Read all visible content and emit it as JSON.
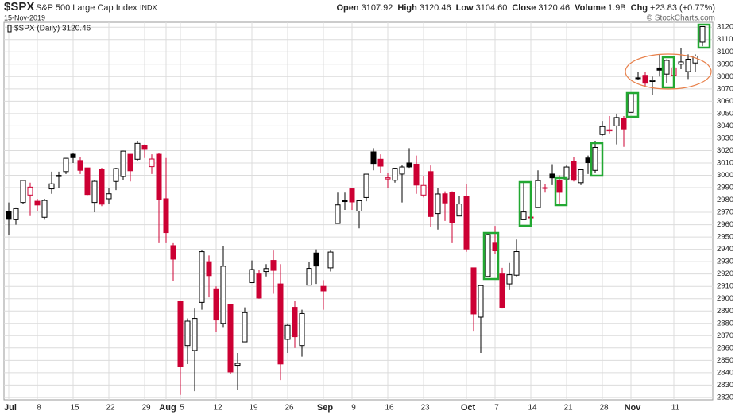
{
  "header": {
    "symbol": "$SPX",
    "name": "S&P 500 Large Cap Index",
    "exchange": "INDX",
    "date": "15-Nov-2019",
    "credit": "© StockCharts.com",
    "stats": [
      {
        "label": "Open",
        "value": "3107.92"
      },
      {
        "label": "High",
        "value": "3120.46"
      },
      {
        "label": "Low",
        "value": "3104.60"
      },
      {
        "label": "Close",
        "value": "3120.46"
      },
      {
        "label": "Volume",
        "value": "1.9B"
      },
      {
        "label": "Chg",
        "value": "+23.83 (+0.77%)"
      }
    ]
  },
  "chart_data": {
    "type": "candlestick",
    "legend": "$SPX (Daily) 3120.46",
    "grid": true,
    "up_fill": "#ffffff",
    "up_stroke": "#000000",
    "down_prev_color": "#cc0033",
    "up_prev_color": "#000000",
    "categories": [
      "Jul",
      null,
      null,
      null,
      "8",
      null,
      null,
      null,
      null,
      "15",
      null,
      null,
      null,
      null,
      "22",
      null,
      null,
      null,
      null,
      "29",
      null,
      null,
      "Aug",
      null,
      "5",
      null,
      null,
      null,
      null,
      "12",
      null,
      null,
      null,
      null,
      "19",
      null,
      null,
      null,
      null,
      "26",
      null,
      null,
      null,
      null,
      "Sep",
      null,
      null,
      null,
      "9",
      null,
      null,
      null,
      null,
      "16",
      null,
      null,
      null,
      null,
      "23",
      null,
      null,
      null,
      null,
      null,
      "Oct",
      null,
      null,
      null,
      "7",
      null,
      null,
      null,
      null,
      "14",
      null,
      null,
      null,
      null,
      "21",
      null,
      null,
      null,
      null,
      "28",
      null,
      null,
      null,
      "Nov",
      null,
      null,
      null,
      null,
      null,
      "11",
      null,
      null,
      null,
      null
    ],
    "open": [
      2971,
      2964,
      2978,
      2984,
      2979,
      2966,
      2989,
      2999,
      3003,
      3017,
      3012,
      3006,
      2978,
      3005,
      2981,
      2995,
      2999,
      3017,
      3013,
      3024,
      3007,
      3017,
      2981,
      2943,
      2898,
      2862,
      2858,
      2897,
      2930,
      2908,
      2880,
      2895,
      2846,
      2865,
      2913,
      2920,
      2922,
      2931,
      2912,
      2867,
      2893,
      2862,
      2911,
      2937,
      2910,
      2925,
      2961,
      2980,
      2989,
      2971,
      2982,
      3019,
      3013,
      2997,
      2996,
      3001,
      3010,
      3009,
      2984,
      3003,
      2969,
      2985,
      2986,
      2967,
      2983,
      2925,
      2885,
      2918,
      2945,
      2920,
      2912,
      2919,
      2964,
      2966,
      2974,
      2990,
      3001,
      2996,
      2997,
      3011,
      2994,
      3014,
      3004,
      3033,
      3036,
      3040,
      3046,
      3051,
      3079,
      3081,
      3076,
      3087,
      3082,
      3081,
      3090,
      3084,
      3091,
      3107.92
    ],
    "high": [
      2978,
      2974,
      2996,
      2994,
      2981,
      2981,
      3003,
      3003,
      3014,
      3018,
      3015,
      3006,
      2996,
      3006,
      2990,
      3006,
      3020,
      3017,
      3028,
      3025,
      3017,
      3018,
      3014,
      2945,
      2898,
      2884,
      2892,
      2939,
      2935,
      2910,
      2943,
      2895,
      2856,
      2893,
      2931,
      2923,
      2928,
      2939,
      2928,
      2880,
      2898,
      2891,
      2930,
      2940,
      2915,
      2939,
      2986,
      2986,
      2990,
      2980,
      3001,
      3022,
      3017,
      3002,
      3006,
      3008,
      3022,
      3016,
      2999,
      3008,
      2990,
      2987,
      2987,
      2983,
      2993,
      2925,
      2911,
      2953,
      2959,
      2925,
      2929,
      2948,
      2994,
      2972,
      3004,
      2993,
      3009,
      3000,
      3008,
      3015,
      3005,
      3016,
      3028,
      3044,
      3048,
      3050,
      3048,
      3067,
      3084,
      3084,
      3080,
      3098,
      3094,
      3088,
      3103,
      3098,
      3098,
      3120.46
    ],
    "low": [
      2952,
      2960,
      2977,
      2967,
      2971,
      2964,
      2985,
      2990,
      3001,
      3010,
      3001,
      2984,
      2970,
      2975,
      2977,
      2988,
      2996,
      2995,
      3012,
      3014,
      3001,
      2945,
      2945,
      2914,
      2822,
      2847,
      2825,
      2891,
      2901,
      2873,
      2877,
      2839,
      2826,
      2865,
      2913,
      2900,
      2918,
      2904,
      2834,
      2856,
      2860,
      2853,
      2911,
      2912,
      2891,
      2922,
      2961,
      2972,
      2972,
      2957,
      2979,
      3004,
      3002,
      2990,
      2994,
      2978,
      3006,
      2985,
      2982,
      2958,
      2956,
      2963,
      2945,
      2967,
      2938,
      2874,
      2856,
      2918,
      2936,
      2892,
      2907,
      2918,
      2964,
      2963,
      2974,
      2986,
      2992,
      2976,
      2997,
      2995,
      2992,
      3001,
      3002,
      3032,
      3034,
      3025,
      3023,
      3051,
      3077,
      3072,
      3065,
      3080,
      3075,
      3077,
      3086,
      3078,
      3084,
      3104.6
    ],
    "close": [
      2964.33,
      2973.01,
      2995.82,
      2990.41,
      2975.95,
      2979.63,
      2993.07,
      2999.91,
      3013.77,
      3014.3,
      3004.04,
      2984.42,
      2995.11,
      2976.61,
      2985.03,
      3005.47,
      3019.56,
      3003.67,
      3025.86,
      3020.97,
      3013.18,
      2980.38,
      2953.56,
      2932.05,
      2844.74,
      2881.77,
      2883.98,
      2938.09,
      2918.65,
      2882.7,
      2926.32,
      2840.6,
      2847.6,
      2888.68,
      2923.65,
      2900.51,
      2924.43,
      2922.95,
      2847.11,
      2878.38,
      2869.16,
      2887.94,
      2924.58,
      2926.46,
      2906.27,
      2937.78,
      2976,
      2978.71,
      2978.43,
      2979.39,
      3000.93,
      3009.57,
      3007.39,
      2997.96,
      3005.7,
      3006.73,
      3006.79,
      2992.07,
      2991.78,
      2966.6,
      2984.87,
      2977.62,
      2961.79,
      2976.74,
      2940.25,
      2887.61,
      2910.63,
      2952.01,
      2938.79,
      2893.06,
      2919.4,
      2938.13,
      2970.27,
      2966.15,
      2995.68,
      2989.69,
      2997.95,
      2986.2,
      3006.72,
      2995.99,
      3004.52,
      3010.29,
      3022.55,
      3039.42,
      3036.89,
      3046.77,
      3037.56,
      3066.91,
      3078.27,
      3074.62,
      3076.78,
      3085.18,
      3093.08,
      3087.01,
      3091.84,
      3094.04,
      3096.63,
      3120.46
    ],
    "ylim": [
      2818,
      3124
    ],
    "yticks": [
      2820,
      2830,
      2840,
      2850,
      2860,
      2870,
      2880,
      2890,
      2900,
      2910,
      2920,
      2930,
      2940,
      2950,
      2960,
      2970,
      2980,
      2990,
      3000,
      3010,
      3020,
      3030,
      3040,
      3050,
      3060,
      3070,
      3080,
      3090,
      3100,
      3110,
      3120
    ]
  }
}
